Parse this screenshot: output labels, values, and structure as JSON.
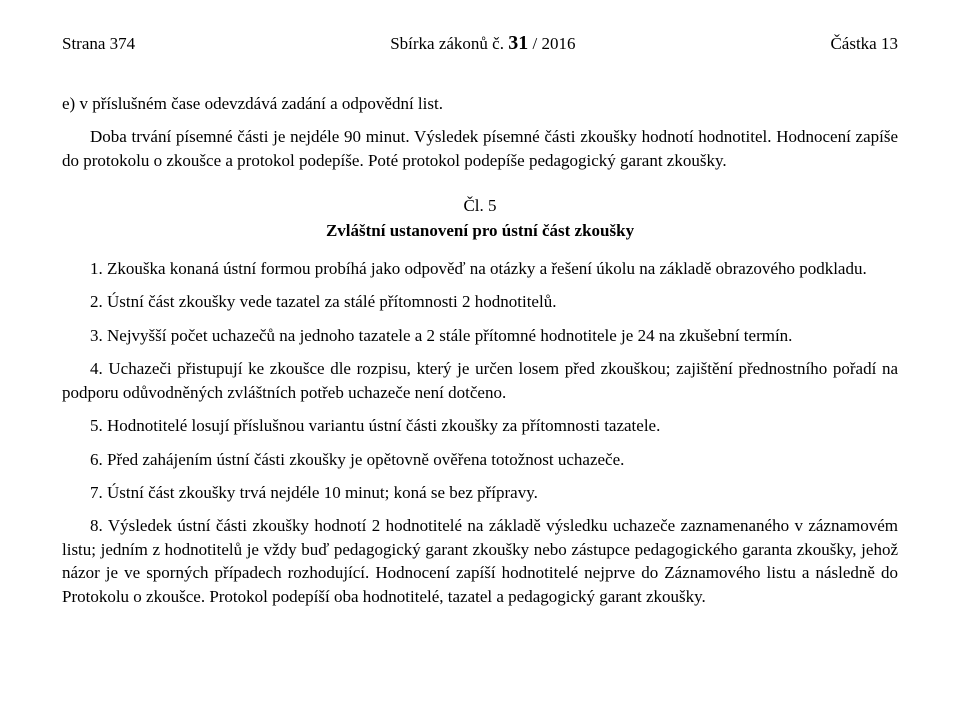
{
  "header": {
    "left": "Strana 374",
    "center_prefix": "Sbírka zákonů č. ",
    "center_bold": "31",
    "center_suffix": " / 2016",
    "right": "Částka 13"
  },
  "intro": {
    "e_item": "e) v příslušném čase odevzdává zadání a odpovědní list.",
    "p1": "Doba trvání písemné části je nejdéle 90 minut. Výsledek písemné části zkoušky hodnotí hodnotitel. Hodnocení zapíše do protokolu o zkoušce a protokol podepíše. Poté protokol podepíše pedagogický garant zkoušky."
  },
  "article": {
    "num": "Čl. 5",
    "title": "Zvláštní ustanovení pro ústní část zkoušky"
  },
  "items": {
    "i1": "1. Zkouška konaná ústní formou probíhá jako odpověď na otázky a řešení úkolu na základě obrazového podkladu.",
    "i2": "2. Ústní část zkoušky vede tazatel za stálé přítomnosti 2 hodnotitelů.",
    "i3": "3. Nejvyšší počet uchazečů na jednoho tazatele a 2 stále přítomné hodnotitele je 24 na zkušební termín.",
    "i4": "4. Uchazeči přistupují ke zkoušce dle rozpisu, který je určen losem před zkouškou; zajištění přednostního pořadí na podporu odůvodněných zvláštních potřeb uchazeče není dotčeno.",
    "i5": "5. Hodnotitelé losují příslušnou variantu ústní části zkoušky za přítomnosti tazatele.",
    "i6": "6. Před zahájením ústní části zkoušky je opětovně ověřena totožnost uchazeče.",
    "i7": "7. Ústní část zkoušky trvá nejdéle 10 minut; koná se bez přípravy.",
    "i8": "8. Výsledek ústní části zkoušky hodnotí 2 hodnotitelé na základě výsledku uchazeče zaznamenaného v záznamovém listu; jedním z hodnotitelů je vždy buď pedagogický garant zkoušky nebo zástupce pedagogického garanta zkoušky, jehož názor je ve sporných případech rozhodující. Hodnocení zapíší hodnotitelé nejprve do Záznamového listu a následně do Protokolu o zkoušce. Protokol podepíší oba hodnotitelé, tazatel a pedagogický garant zkoušky."
  }
}
